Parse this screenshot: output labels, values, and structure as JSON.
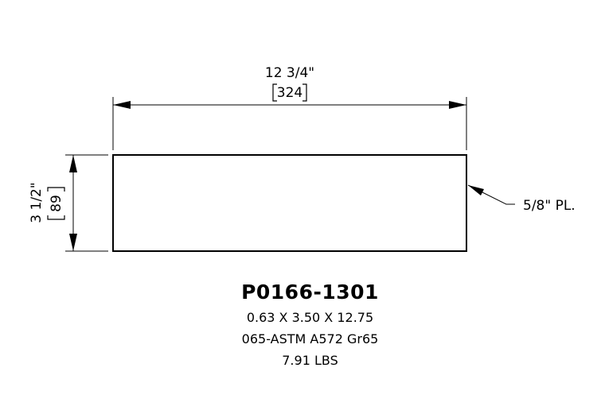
{
  "dimensions": {
    "width_imperial": "12 3/4\"",
    "width_metric": "324",
    "height_imperial": "3 1/2\"",
    "height_metric": "89"
  },
  "callout": {
    "label": "5/8\" PL."
  },
  "part": {
    "number": "P0166-1301",
    "size": "0.63 X 3.50 X 12.75",
    "material": "065-ASTM A572 Gr65",
    "weight": "7.91 LBS"
  }
}
